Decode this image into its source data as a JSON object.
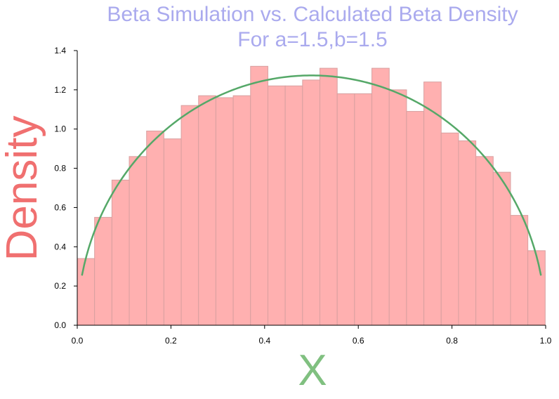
{
  "chart_data": {
    "type": "bar",
    "title_line1": "Beta Simulation vs. Calculated Beta Density",
    "title_line2": "For a=1.5,b=1.5",
    "xlabel": "X",
    "ylabel": "Density",
    "xlim": [
      0.0,
      1.0
    ],
    "ylim": [
      0.0,
      1.4
    ],
    "xticks": [
      "0.0",
      "0.2",
      "0.4",
      "0.6",
      "0.8",
      "1.0"
    ],
    "yticks": [
      "0.0",
      "0.2",
      "0.4",
      "0.6",
      "0.8",
      "1.0",
      "1.2",
      "1.4"
    ],
    "grid": false,
    "bin_edges": [
      0.0,
      0.037,
      0.074,
      0.111,
      0.148,
      0.185,
      0.222,
      0.259,
      0.296,
      0.333,
      0.37,
      0.407,
      0.444,
      0.481,
      0.518,
      0.555,
      0.592,
      0.629,
      0.666,
      0.703,
      0.74,
      0.777,
      0.814,
      0.851,
      0.888,
      0.925,
      0.962,
      0.999
    ],
    "histogram_values": [
      0.34,
      0.55,
      0.74,
      0.86,
      0.99,
      0.95,
      1.12,
      1.17,
      1.16,
      1.17,
      1.32,
      1.22,
      1.22,
      1.25,
      1.31,
      1.18,
      1.18,
      1.31,
      1.2,
      1.09,
      1.24,
      0.98,
      0.94,
      0.86,
      0.78,
      0.56,
      0.38
    ],
    "density_curve": {
      "a": 1.5,
      "b": 1.5,
      "x_start": 0.01,
      "x_end": 0.99
    },
    "colors": {
      "bars": "#ffb0b0",
      "bar_edge": "#d8a0a0",
      "curve": "#55a868",
      "title": "#aaaaee",
      "xlabel": "#80c080",
      "ylabel": "#f07070"
    }
  }
}
